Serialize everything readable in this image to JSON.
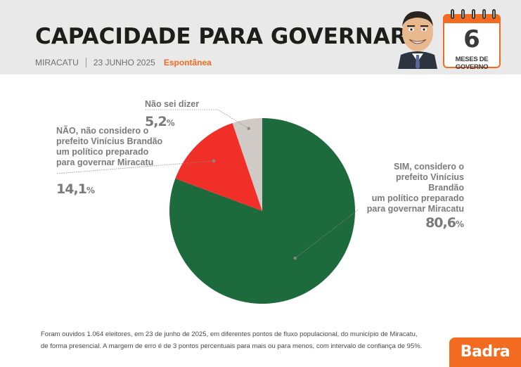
{
  "header": {
    "title": "CAPACIDADE PARA GOVERNAR",
    "city": "MIRACATU",
    "date": "23 JUNHO 2025",
    "tag": "Espontânea"
  },
  "calendar": {
    "number": "6",
    "label": "MESES DE GOVERNO"
  },
  "colors": {
    "sim": "#1d6b3c",
    "nao": "#f03028",
    "nao_sei": "#cfcac6",
    "accent": "#f26b21"
  },
  "chart_data": {
    "type": "pie",
    "title": "CAPACIDADE PARA GOVERNAR",
    "slices": [
      {
        "label": "SIM, considero o prefeito Vinícius Brandão um político preparado para governar Miracatu",
        "value": 80.6,
        "display": "80,6",
        "color": "#1d6b3c"
      },
      {
        "label": "NÃO, não considero o prefeito Vinícius Brandão um político preparado para governar Miracatu",
        "value": 14.1,
        "display": "14,1",
        "color": "#f03028"
      },
      {
        "label": "Não sei dizer",
        "value": 5.2,
        "display": "5,2",
        "color": "#cfcac6"
      }
    ],
    "unit": "%"
  },
  "labels": {
    "sim": [
      "SIM, considero o",
      "prefeito Vinícius Brandão",
      "um político preparado",
      "para governar Miracatu"
    ],
    "nao": [
      "NÃO, não considero o",
      "prefeito Vinícius Brandão",
      "um político preparado",
      "para governar Miracatu"
    ],
    "nao_sei": [
      "Não sei dizer"
    ]
  },
  "footnote": {
    "line1": "Foram ouvidos 1.064 eleitores, em 23 de junho de 2025, em diferentes pontos de fluxo populacional, do município de Miracatu,",
    "line2": "de forma presencial. A margem de erro é de 3 pontos percentuais para mais ou para menos, com intervalo de confiança de 95%."
  },
  "logo": {
    "text": "Badra"
  }
}
